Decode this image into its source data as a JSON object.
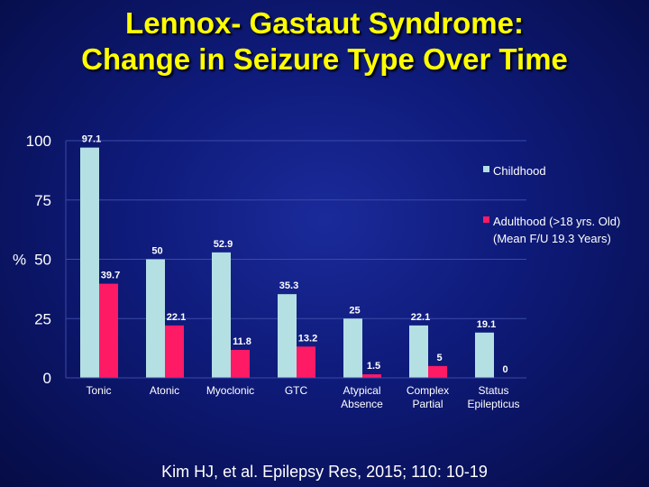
{
  "title": {
    "line1": "Lennox- Gastaut Syndrome:",
    "line2": "Change in Seizure Type Over Time"
  },
  "citation": "Kim HJ, et al. Epilepsy Res, 2015; 110: 10-19",
  "colors": {
    "childhood": "#b4e0e4",
    "adulthood": "#ff1a66",
    "gridline": "#3a4aa8",
    "text": "#ffffff",
    "title": "#ffff00"
  },
  "chart_data": {
    "type": "bar",
    "ylabel": "%",
    "ylim": [
      0,
      100
    ],
    "yticks": [
      0,
      25,
      50,
      75,
      100
    ],
    "categories": [
      [
        "Tonic"
      ],
      [
        "Atonic"
      ],
      [
        "Myoclonic"
      ],
      [
        "GTC"
      ],
      [
        "Atypical",
        "Absence"
      ],
      [
        "Complex",
        "Partial"
      ],
      [
        "Status",
        "Epilepticus"
      ]
    ],
    "series": [
      {
        "name": "Childhood",
        "legend_lines": [
          "Childhood"
        ],
        "values": [
          97.1,
          50,
          52.9,
          35.3,
          25,
          22.1,
          19.1
        ],
        "labels": [
          "97.1",
          "50",
          "52.9",
          "35.3",
          "25",
          "22.1",
          "19.1"
        ]
      },
      {
        "name": "Adulthood (>18 yrs. Old) (Mean F/U 19.3 Years)",
        "legend_lines": [
          "Adulthood (>18 yrs. Old)",
          "(Mean F/U 19.3 Years)"
        ],
        "values": [
          39.7,
          22.1,
          11.8,
          13.2,
          1.5,
          5,
          0
        ],
        "labels": [
          "39.7",
          "22.1",
          "11.8",
          "13.2",
          "1.5",
          "5",
          "0"
        ]
      }
    ],
    "legend_position": "right"
  }
}
